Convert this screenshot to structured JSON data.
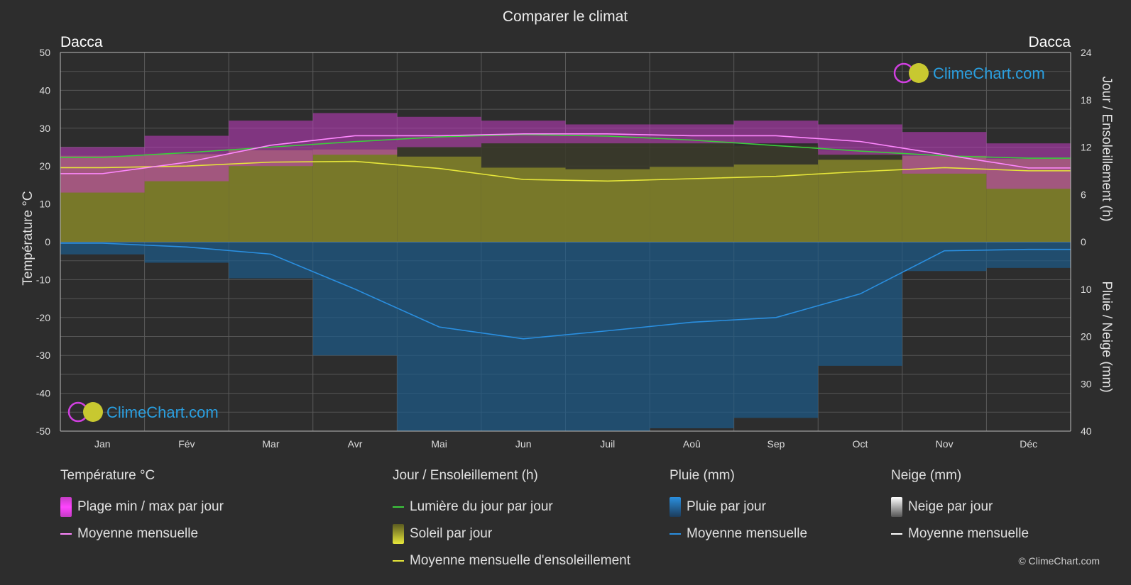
{
  "title": "Comparer le climat",
  "location_left": "Dacca",
  "location_right": "Dacca",
  "brand": "ClimeChart.com",
  "copyright": "© ClimeChart.com",
  "colors": {
    "background": "#2d2d2d",
    "temp_range": "#c43cc4",
    "temp_mean": "#ff88ff",
    "daylight": "#3ccc3c",
    "sunshine_fill": "#8d8d2a",
    "sunshine_mean": "#e6e63a",
    "rain_fill": "#1c5b8a",
    "rain_mean": "#2a8fe0",
    "snow_mean": "#ffffff",
    "brand_text": "#2a9fe0"
  },
  "legend": {
    "temperature": {
      "title": "Température °C",
      "range": "Plage min / max par jour",
      "mean": "Moyenne mensuelle"
    },
    "sun": {
      "title": "Jour / Ensoleillement (h)",
      "daylight": "Lumière du jour par jour",
      "sunshine": "Soleil par jour",
      "mean": "Moyenne mensuelle d'ensoleillement"
    },
    "rain": {
      "title": "Pluie (mm)",
      "per_day": "Pluie par jour",
      "mean": "Moyenne mensuelle"
    },
    "snow": {
      "title": "Neige (mm)",
      "per_day": "Neige par jour",
      "mean": "Moyenne mensuelle"
    }
  },
  "chart_data": {
    "type": "line",
    "title": "Comparer le climat",
    "months": [
      "Jan",
      "Fév",
      "Mar",
      "Avr",
      "Mai",
      "Jun",
      "Juil",
      "Aoû",
      "Sep",
      "Oct",
      "Nov",
      "Déc"
    ],
    "y_left": {
      "label": "Température °C",
      "range": [
        -50,
        50
      ],
      "ticks": [
        50,
        40,
        30,
        20,
        10,
        0,
        -10,
        -20,
        -30,
        -40,
        -50
      ]
    },
    "y_right_top": {
      "label": "Jour / Ensoleillement (h)",
      "range": [
        0,
        24
      ],
      "ticks": [
        24,
        18,
        12,
        6,
        0
      ]
    },
    "y_right_bottom": {
      "label": "Pluie / Neige (mm)",
      "range": [
        0,
        40
      ],
      "ticks": [
        0,
        10,
        20,
        30,
        40
      ]
    },
    "grid": true,
    "series": [
      {
        "name": "Plage min / max par jour",
        "unit": "°C",
        "min": [
          13,
          16,
          20,
          23,
          25,
          26,
          26,
          26,
          26,
          23,
          18,
          14
        ],
        "max": [
          25,
          28,
          32,
          34,
          33,
          32,
          31,
          31,
          32,
          31,
          29,
          26
        ]
      },
      {
        "name": "Moyenne mensuelle",
        "unit": "°C",
        "values": [
          18,
          21,
          25.5,
          28,
          28,
          28.5,
          28.5,
          28,
          28,
          26.5,
          23,
          19.5
        ]
      },
      {
        "name": "Lumière du jour par jour",
        "unit": "h",
        "values": [
          10.7,
          11.3,
          12,
          12.7,
          13.3,
          13.6,
          13.4,
          12.9,
          12.2,
          11.5,
          10.9,
          10.6
        ]
      },
      {
        "name": "Moyenne mensuelle d'ensoleillement",
        "unit": "h",
        "values": [
          9.4,
          9.6,
          10.1,
          10.2,
          9.3,
          7.9,
          7.7,
          8,
          8.3,
          8.9,
          9.4,
          9
        ]
      },
      {
        "name": "Moyenne mensuelle",
        "unit": "mm",
        "values": [
          0.3,
          1.1,
          2.6,
          10,
          18,
          20.5,
          18.8,
          17,
          16,
          11,
          1.9,
          1.6
        ]
      }
    ]
  }
}
